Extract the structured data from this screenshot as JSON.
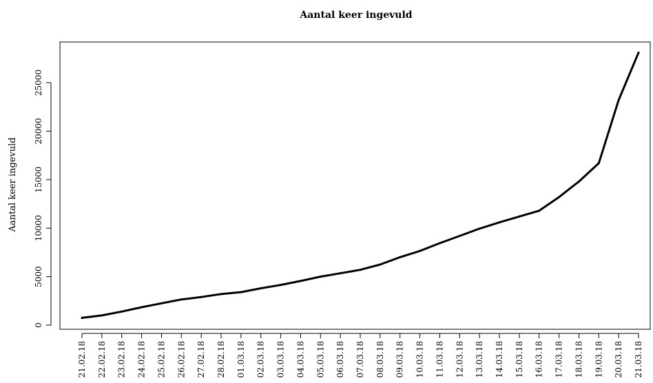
{
  "chart_data": {
    "type": "line",
    "title": "Aantal keer ingevuld",
    "xlabel": "",
    "ylabel": "Aantal keer ingevuld",
    "ylim": [
      0,
      28000
    ],
    "y_ticks": [
      0,
      5000,
      10000,
      15000,
      20000,
      25000
    ],
    "categories": [
      "21.02.18",
      "22.02.18",
      "23.02.18",
      "24.02.18",
      "25.02.18",
      "26.02.18",
      "27.02.18",
      "28.02.18",
      "01.03.18",
      "02.03.18",
      "03.03.18",
      "04.03.18",
      "05.03.18",
      "06.03.18",
      "07.03.18",
      "08.03.18",
      "09.03.18",
      "10.03.18",
      "11.03.18",
      "12.03.18",
      "13.03.18",
      "14.03.18",
      "15.03.18",
      "16.03.18",
      "17.03.18",
      "18.03.18",
      "19.03.18",
      "20.03.18",
      "21.03.18"
    ],
    "series": [
      {
        "color": "#000000",
        "values": [
          750,
          1000,
          1400,
          1850,
          2250,
          2650,
          2900,
          3200,
          3400,
          3800,
          4150,
          4550,
          5000,
          5350,
          5700,
          6250,
          7000,
          7650,
          8450,
          9200,
          9950,
          10600,
          11200,
          11800,
          13200,
          14800,
          16700,
          23200,
          28100
        ]
      }
    ],
    "grid": false,
    "legend": "none"
  }
}
